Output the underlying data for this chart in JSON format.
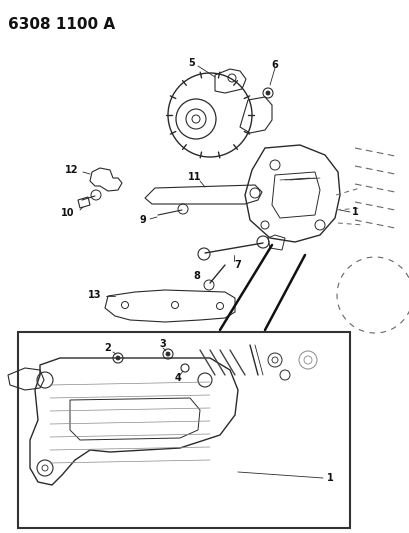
{
  "title": "6308 1100 A",
  "bg_color": "#ffffff",
  "title_fontsize": 11,
  "title_fontweight": "bold",
  "fig_width": 4.1,
  "fig_height": 5.33,
  "dpi": 100,
  "line_color": "#2a2a2a",
  "dash_color": "#666666"
}
